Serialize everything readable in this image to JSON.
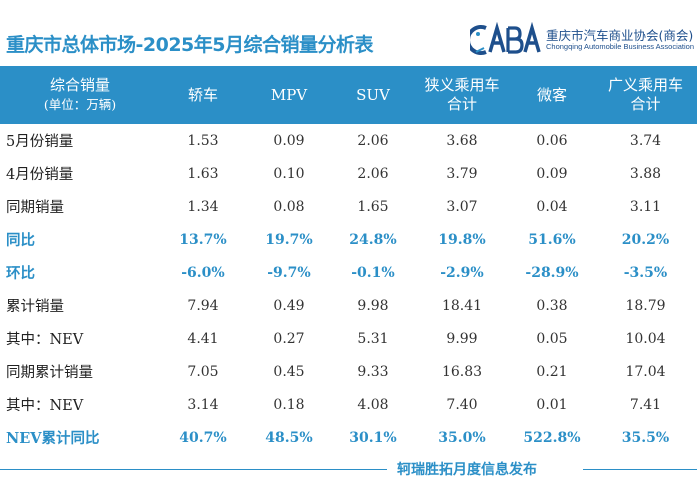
{
  "title": "重庆市总体市场-2025年5月综合销量分析表",
  "logo": {
    "mark": "CABA",
    "cn": "重庆市汽车商业协会(商会)",
    "en": "Chongqing Automobile Business Association"
  },
  "table": {
    "header": {
      "col0_main": "综合销量",
      "col0_sub": "(单位：万辆)",
      "col1": "轿车",
      "col2": "MPV",
      "col3": "SUV",
      "col4_main": "狭义乘用车",
      "col4_sub": "合计",
      "col5": "微客",
      "col6_main": "广义乘用车",
      "col6_sub": "合计"
    },
    "rows": [
      {
        "label": "5月份销量",
        "cells": [
          "1.53",
          "0.09",
          "2.06",
          "3.68",
          "0.06",
          "3.74"
        ]
      },
      {
        "label": "4月份销量",
        "cells": [
          "1.63",
          "0.10",
          "2.06",
          "3.79",
          "0.09",
          "3.88"
        ]
      },
      {
        "label": "同期销量",
        "cells": [
          "1.34",
          "0.08",
          "1.65",
          "3.07",
          "0.04",
          "3.11"
        ]
      },
      {
        "label": "同比",
        "cells": [
          "13.7%",
          "19.7%",
          "24.8%",
          "19.8%",
          "51.6%",
          "20.2%"
        ]
      },
      {
        "label": "环比",
        "cells": [
          "-6.0%",
          "-9.7%",
          "-0.1%",
          "-2.9%",
          "-28.9%",
          "-3.5%"
        ]
      },
      {
        "label": "累计销量",
        "cells": [
          "7.94",
          "0.49",
          "9.98",
          "18.41",
          "0.38",
          "18.79"
        ]
      },
      {
        "label": "其中：NEV",
        "cells": [
          "4.41",
          "0.27",
          "5.31",
          "9.99",
          "0.05",
          "10.04"
        ]
      },
      {
        "label": "同期累计销量",
        "cells": [
          "7.05",
          "0.45",
          "9.33",
          "16.83",
          "0.21",
          "17.04"
        ]
      },
      {
        "label": "其中：NEV",
        "cells": [
          "3.14",
          "0.18",
          "4.08",
          "7.40",
          "0.01",
          "7.41"
        ]
      },
      {
        "label": "NEV累计同比",
        "cells": [
          "40.7%",
          "48.5%",
          "30.1%",
          "35.0%",
          "522.8%",
          "35.5%"
        ]
      }
    ]
  },
  "footer": "轲瑞胜拓月度信息发布",
  "colors": {
    "accent": "#2b8fc7",
    "logo_dark": "#1e4f8c",
    "text": "#333333"
  }
}
